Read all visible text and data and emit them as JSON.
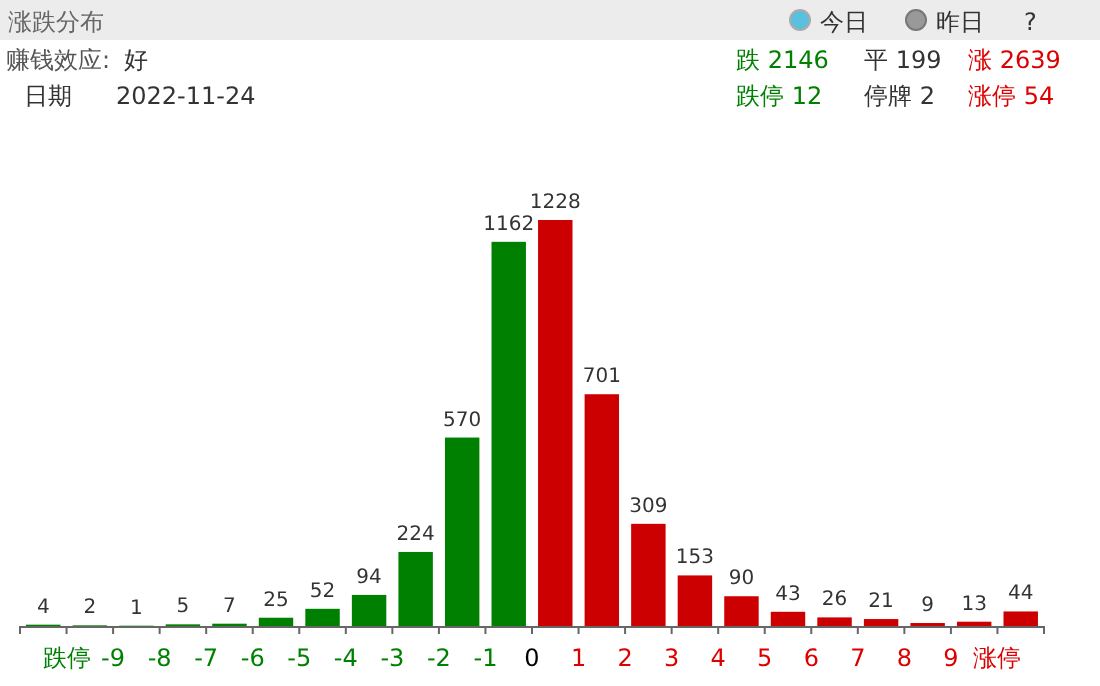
{
  "chart_data": {
    "type": "bar",
    "title": "涨跌分布",
    "annotations": [
      "今日",
      "昨日",
      "?",
      "赚钱效应:",
      "好",
      "日期",
      "2022-11-24",
      "跌 2146",
      "平 199",
      "涨 2639",
      "跌停 12",
      "停牌 2",
      "涨停 54"
    ],
    "categories": [
      "跌停",
      "-9",
      "-8",
      "-7",
      "-6",
      "-5",
      "-4",
      "-3",
      "-2",
      "-1",
      "0",
      "1",
      "2",
      "3",
      "4",
      "5",
      "6",
      "7",
      "8",
      "9",
      "涨停",
      null
    ],
    "values": [
      4,
      2,
      1,
      5,
      7,
      25,
      52,
      94,
      224,
      570,
      1162,
      1228,
      701,
      309,
      153,
      90,
      43,
      26,
      21,
      9,
      13,
      44
    ],
    "colors": [
      "#008000",
      "#008000",
      "#008000",
      "#008000",
      "#008000",
      "#008000",
      "#008000",
      "#008000",
      "#008000",
      "#008000",
      "#008000",
      "#cc0000",
      "#cc0000",
      "#cc0000",
      "#cc0000",
      "#cc0000",
      "#cc0000",
      "#cc0000",
      "#cc0000",
      "#cc0000",
      "#cc0000",
      "#cc0000"
    ],
    "data_labels": true
  }
}
